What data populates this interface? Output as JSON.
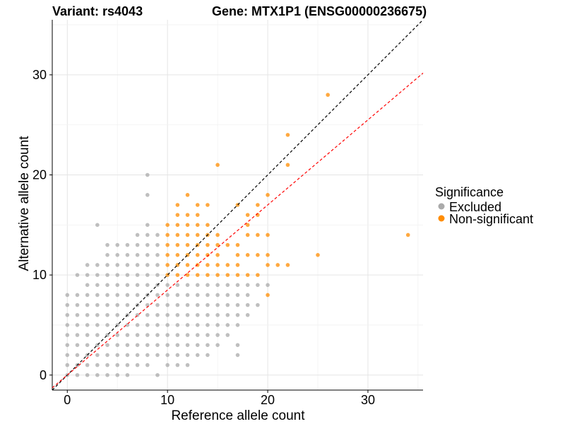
{
  "chart_data": {
    "type": "scatter",
    "title_left": "Variant: rs4043",
    "title_right": "Gene: MTX1P1 (ENSG00000236675)",
    "xlabel": "Reference allele count",
    "ylabel": "Alternative allele count",
    "xlim": [
      -1.5,
      35.5
    ],
    "ylim": [
      -1.5,
      35.5
    ],
    "xticks": [
      0,
      10,
      20,
      30
    ],
    "yticks": [
      0,
      10,
      20,
      30
    ],
    "grid": true,
    "reference_lines": [
      {
        "slope": 1.0,
        "intercept": 0,
        "color": "#000000",
        "style": "dashed"
      },
      {
        "slope": 0.85,
        "intercept": 0,
        "color": "#ff0000",
        "style": "dashed"
      }
    ],
    "legend": {
      "title": "Significance",
      "position": "right",
      "entries": [
        {
          "label": "Excluded",
          "color": "#aaaaaa"
        },
        {
          "label": "Non-significant",
          "color": "#ff8c00"
        }
      ]
    },
    "series": [
      {
        "name": "Excluded",
        "color": "#aaaaaa",
        "points": [
          [
            0,
            0
          ],
          [
            0,
            1
          ],
          [
            0,
            2
          ],
          [
            0,
            3
          ],
          [
            0,
            4
          ],
          [
            0,
            5
          ],
          [
            0,
            6
          ],
          [
            0,
            7
          ],
          [
            0,
            8
          ],
          [
            1,
            0
          ],
          [
            1,
            1
          ],
          [
            1,
            2
          ],
          [
            1,
            3
          ],
          [
            1,
            4
          ],
          [
            1,
            5
          ],
          [
            1,
            6
          ],
          [
            1,
            7
          ],
          [
            1,
            8
          ],
          [
            1,
            10
          ],
          [
            2,
            0
          ],
          [
            2,
            1
          ],
          [
            2,
            2
          ],
          [
            2,
            3
          ],
          [
            2,
            4
          ],
          [
            2,
            5
          ],
          [
            2,
            6
          ],
          [
            2,
            7
          ],
          [
            2,
            8
          ],
          [
            2,
            9
          ],
          [
            2,
            10
          ],
          [
            2,
            11
          ],
          [
            3,
            0
          ],
          [
            3,
            1
          ],
          [
            3,
            2
          ],
          [
            3,
            3
          ],
          [
            3,
            4
          ],
          [
            3,
            5
          ],
          [
            3,
            6
          ],
          [
            3,
            7
          ],
          [
            3,
            8
          ],
          [
            3,
            9
          ],
          [
            3,
            10
          ],
          [
            3,
            11
          ],
          [
            3,
            15
          ],
          [
            4,
            0
          ],
          [
            4,
            1
          ],
          [
            4,
            2
          ],
          [
            4,
            3
          ],
          [
            4,
            4
          ],
          [
            4,
            5
          ],
          [
            4,
            6
          ],
          [
            4,
            7
          ],
          [
            4,
            8
          ],
          [
            4,
            9
          ],
          [
            4,
            10
          ],
          [
            4,
            11
          ],
          [
            4,
            12
          ],
          [
            4,
            13
          ],
          [
            5,
            0
          ],
          [
            5,
            1
          ],
          [
            5,
            2
          ],
          [
            5,
            3
          ],
          [
            5,
            4
          ],
          [
            5,
            5
          ],
          [
            5,
            6
          ],
          [
            5,
            7
          ],
          [
            5,
            8
          ],
          [
            5,
            9
          ],
          [
            5,
            10
          ],
          [
            5,
            11
          ],
          [
            5,
            12
          ],
          [
            5,
            13
          ],
          [
            6,
            0
          ],
          [
            6,
            1
          ],
          [
            6,
            2
          ],
          [
            6,
            3
          ],
          [
            6,
            4
          ],
          [
            6,
            5
          ],
          [
            6,
            6
          ],
          [
            6,
            7
          ],
          [
            6,
            8
          ],
          [
            6,
            9
          ],
          [
            6,
            10
          ],
          [
            6,
            11
          ],
          [
            6,
            12
          ],
          [
            6,
            13
          ],
          [
            7,
            1
          ],
          [
            7,
            2
          ],
          [
            7,
            3
          ],
          [
            7,
            4
          ],
          [
            7,
            5
          ],
          [
            7,
            6
          ],
          [
            7,
            7
          ],
          [
            7,
            8
          ],
          [
            7,
            9
          ],
          [
            7,
            10
          ],
          [
            7,
            11
          ],
          [
            7,
            12
          ],
          [
            7,
            13
          ],
          [
            7,
            14
          ],
          [
            8,
            1
          ],
          [
            8,
            2
          ],
          [
            8,
            3
          ],
          [
            8,
            4
          ],
          [
            8,
            5
          ],
          [
            8,
            6
          ],
          [
            8,
            7
          ],
          [
            8,
            8
          ],
          [
            8,
            9
          ],
          [
            8,
            10
          ],
          [
            8,
            11
          ],
          [
            8,
            12
          ],
          [
            8,
            13
          ],
          [
            8,
            14
          ],
          [
            8,
            15
          ],
          [
            8,
            18
          ],
          [
            8,
            20
          ],
          [
            9,
            0
          ],
          [
            9,
            2
          ],
          [
            9,
            3
          ],
          [
            9,
            4
          ],
          [
            9,
            5
          ],
          [
            9,
            6
          ],
          [
            9,
            7
          ],
          [
            9,
            8
          ],
          [
            9,
            9
          ],
          [
            9,
            10
          ],
          [
            9,
            11
          ],
          [
            9,
            12
          ],
          [
            9,
            13
          ],
          [
            9,
            14
          ],
          [
            10,
            1
          ],
          [
            10,
            2
          ],
          [
            10,
            3
          ],
          [
            10,
            4
          ],
          [
            10,
            5
          ],
          [
            10,
            6
          ],
          [
            10,
            7
          ],
          [
            10,
            8
          ],
          [
            10,
            9
          ],
          [
            11,
            1
          ],
          [
            11,
            2
          ],
          [
            11,
            3
          ],
          [
            11,
            4
          ],
          [
            11,
            5
          ],
          [
            11,
            6
          ],
          [
            11,
            7
          ],
          [
            11,
            8
          ],
          [
            11,
            9
          ],
          [
            12,
            1
          ],
          [
            12,
            2
          ],
          [
            12,
            3
          ],
          [
            12,
            4
          ],
          [
            12,
            5
          ],
          [
            12,
            6
          ],
          [
            12,
            7
          ],
          [
            12,
            8
          ],
          [
            12,
            9
          ],
          [
            13,
            2
          ],
          [
            13,
            3
          ],
          [
            13,
            4
          ],
          [
            13,
            5
          ],
          [
            13,
            6
          ],
          [
            13,
            7
          ],
          [
            13,
            8
          ],
          [
            13,
            9
          ],
          [
            14,
            2
          ],
          [
            14,
            3
          ],
          [
            14,
            4
          ],
          [
            14,
            5
          ],
          [
            14,
            6
          ],
          [
            14,
            7
          ],
          [
            14,
            8
          ],
          [
            14,
            9
          ],
          [
            15,
            3
          ],
          [
            15,
            4
          ],
          [
            15,
            5
          ],
          [
            15,
            6
          ],
          [
            15,
            7
          ],
          [
            15,
            8
          ],
          [
            15,
            9
          ],
          [
            16,
            4
          ],
          [
            16,
            5
          ],
          [
            16,
            6
          ],
          [
            16,
            7
          ],
          [
            16,
            8
          ],
          [
            16,
            9
          ],
          [
            17,
            2
          ],
          [
            17,
            3
          ],
          [
            17,
            5
          ],
          [
            17,
            6
          ],
          [
            17,
            7
          ],
          [
            17,
            8
          ],
          [
            17,
            9
          ],
          [
            18,
            6
          ],
          [
            18,
            7
          ],
          [
            18,
            8
          ],
          [
            18,
            9
          ],
          [
            19,
            7
          ],
          [
            19,
            9
          ],
          [
            20,
            9
          ]
        ]
      },
      {
        "name": "Non-significant",
        "color": "#ff8c00",
        "points": [
          [
            10,
            10
          ],
          [
            10,
            11
          ],
          [
            10,
            12
          ],
          [
            10,
            13
          ],
          [
            10,
            14
          ],
          [
            10,
            15
          ],
          [
            11,
            10
          ],
          [
            11,
            11
          ],
          [
            11,
            12
          ],
          [
            11,
            13
          ],
          [
            11,
            14
          ],
          [
            11,
            15
          ],
          [
            11,
            16
          ],
          [
            11,
            17
          ],
          [
            12,
            10
          ],
          [
            12,
            11
          ],
          [
            12,
            12
          ],
          [
            12,
            13
          ],
          [
            12,
            14
          ],
          [
            12,
            15
          ],
          [
            12,
            16
          ],
          [
            12,
            18
          ],
          [
            13,
            10
          ],
          [
            13,
            11
          ],
          [
            13,
            12
          ],
          [
            13,
            13
          ],
          [
            13,
            14
          ],
          [
            13,
            15
          ],
          [
            13,
            16
          ],
          [
            13,
            17
          ],
          [
            14,
            10
          ],
          [
            14,
            11
          ],
          [
            14,
            12
          ],
          [
            14,
            13
          ],
          [
            14,
            14
          ],
          [
            14,
            15
          ],
          [
            14,
            17
          ],
          [
            15,
            10
          ],
          [
            15,
            11
          ],
          [
            15,
            12
          ],
          [
            15,
            13
          ],
          [
            15,
            14
          ],
          [
            15,
            21
          ],
          [
            16,
            10
          ],
          [
            16,
            11
          ],
          [
            16,
            13
          ],
          [
            17,
            10
          ],
          [
            17,
            11
          ],
          [
            17,
            12
          ],
          [
            17,
            13
          ],
          [
            17,
            17
          ],
          [
            18,
            10
          ],
          [
            18,
            12
          ],
          [
            18,
            14
          ],
          [
            18,
            15
          ],
          [
            18,
            16
          ],
          [
            19,
            10
          ],
          [
            19,
            12
          ],
          [
            19,
            14
          ],
          [
            19,
            16
          ],
          [
            19,
            17
          ],
          [
            20,
            8
          ],
          [
            20,
            11
          ],
          [
            20,
            12
          ],
          [
            20,
            14
          ],
          [
            20,
            18
          ],
          [
            21,
            11
          ],
          [
            22,
            11
          ],
          [
            22,
            21
          ],
          [
            22,
            24
          ],
          [
            25,
            12
          ],
          [
            26,
            28
          ],
          [
            34,
            14
          ]
        ]
      }
    ]
  }
}
